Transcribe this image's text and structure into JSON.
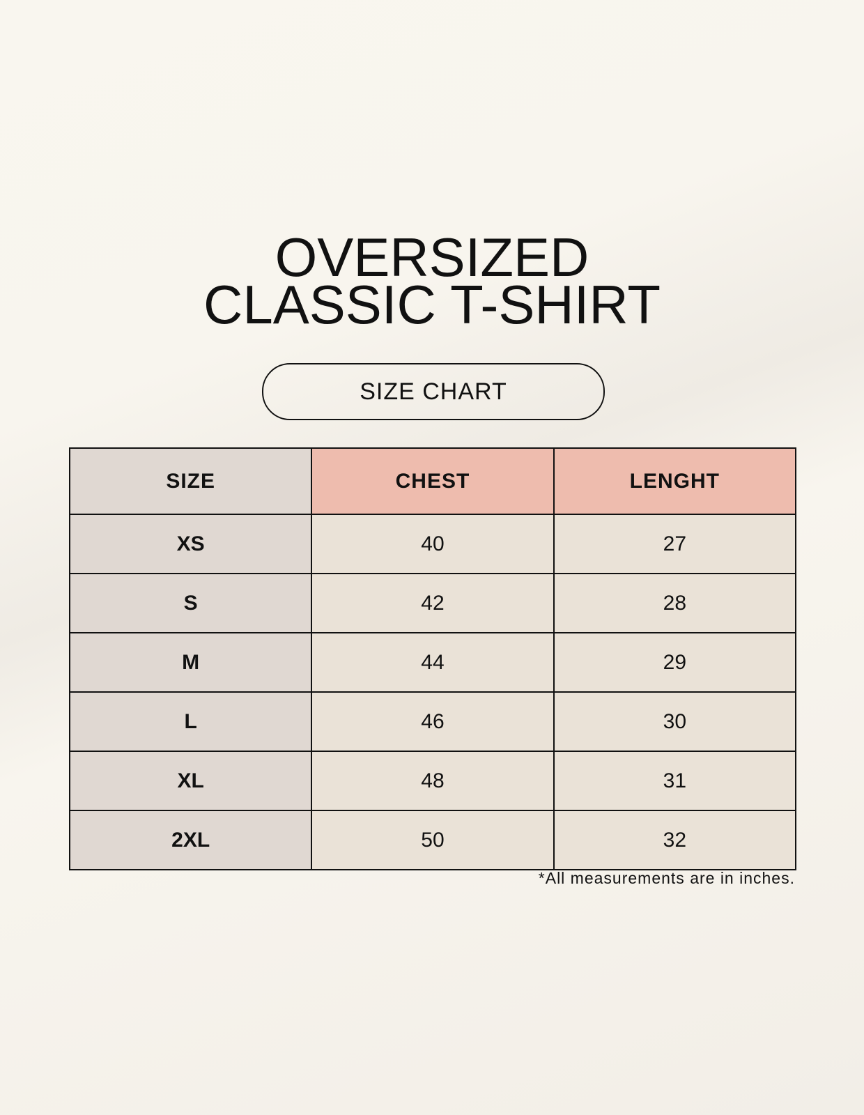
{
  "title": {
    "line1": "OVERSIZED",
    "line2": "CLASSIC T-SHIRT"
  },
  "badge": "SIZE CHART",
  "table": {
    "headers": [
      "SIZE",
      "CHEST",
      "LENGHT"
    ],
    "rows": [
      [
        "XS",
        "40",
        "27"
      ],
      [
        "S",
        "42",
        "28"
      ],
      [
        "M",
        "44",
        "29"
      ],
      [
        "L",
        "46",
        "30"
      ],
      [
        "XL",
        "48",
        "31"
      ],
      [
        "2XL",
        "50",
        "32"
      ]
    ]
  },
  "footnote": "*All measurements are in inches.",
  "colors": {
    "size_column": "#e0d8d2",
    "header_accent": "#eebcae",
    "value_cells": "#eae2d7"
  }
}
